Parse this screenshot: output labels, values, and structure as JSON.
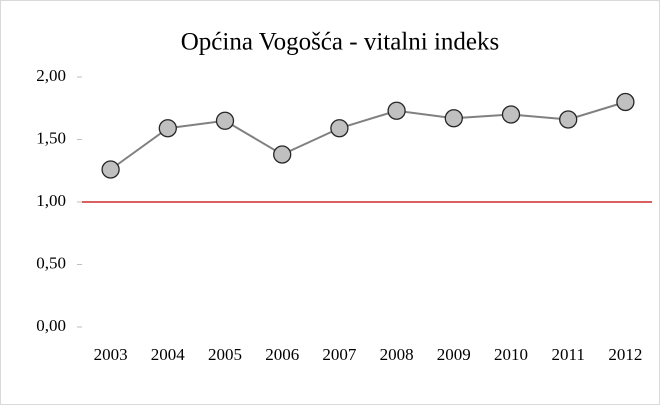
{
  "chart_data": {
    "type": "line",
    "title": "Općina Vogošća - vitalni indeks",
    "categories": [
      "2003",
      "2004",
      "2005",
      "2006",
      "2007",
      "2008",
      "2009",
      "2010",
      "2011",
      "2012"
    ],
    "series": [
      {
        "name": "vitalni indeks",
        "color": "#808080",
        "marker_color": "#c0c0c0",
        "values": [
          1.26,
          1.59,
          1.65,
          1.38,
          1.59,
          1.73,
          1.67,
          1.7,
          1.66,
          1.8
        ]
      }
    ],
    "ylim": [
      0,
      2
    ],
    "yticks": [
      {
        "value": 0,
        "label": "0,00"
      },
      {
        "value": 0.5,
        "label": "0,50"
      },
      {
        "value": 1,
        "label": "1,00"
      },
      {
        "value": 1.5,
        "label": "1,50"
      },
      {
        "value": 2,
        "label": "2,00"
      }
    ],
    "reference_line": {
      "value": 1,
      "color": "#c00000"
    },
    "grid": false
  }
}
